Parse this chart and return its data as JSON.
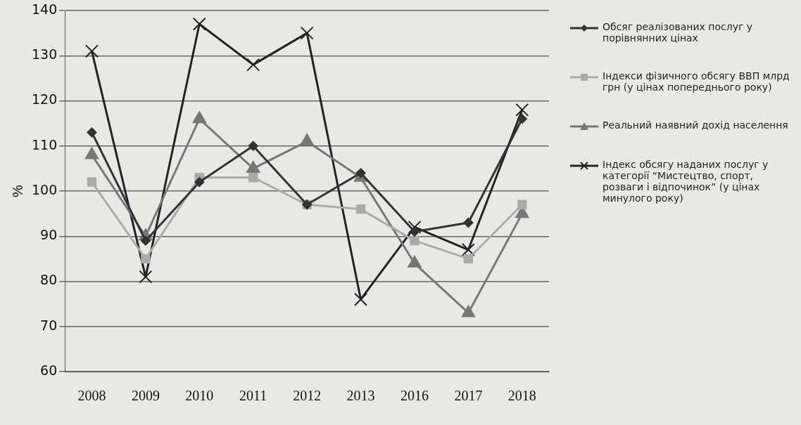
{
  "chart_data": {
    "type": "line",
    "ylabel": "%",
    "categories": [
      "2008",
      "2009",
      "2010",
      "2011",
      "2012",
      "2013",
      "2016",
      "2017",
      "2018"
    ],
    "ylim": [
      60,
      140
    ],
    "yticks": [
      60,
      70,
      80,
      90,
      100,
      110,
      120,
      130,
      140
    ],
    "grid": "y",
    "legend": "right",
    "line_style": "solid",
    "series": [
      {
        "name": "Обсяг реалізованих послуг у порівнянних цінах",
        "color": "#333333",
        "marker": "diamond",
        "values": [
          113,
          89,
          102,
          110,
          97,
          104,
          91,
          93,
          116
        ]
      },
      {
        "name": "Індекси фізичного обсягу ВВП млрд грн (у цінах попереднього року)",
        "color": "#aaaaaa",
        "marker": "square",
        "values": [
          102,
          85,
          103,
          103,
          97,
          96,
          89,
          85,
          97
        ]
      },
      {
        "name": "Реальний наявний дохід населення",
        "color": "#777777",
        "marker": "triangle",
        "values": [
          108,
          90,
          116,
          105,
          111,
          103,
          84,
          73,
          95
        ]
      },
      {
        "name": "Індекс обсягу наданих послуг у категорії “Мистецтво, спорт, розваги і відпочинок” (у цінах минулого року)",
        "color": "#222222",
        "marker": "cross",
        "values": [
          131,
          81,
          137,
          128,
          135,
          76,
          92,
          87,
          118
        ]
      }
    ]
  }
}
